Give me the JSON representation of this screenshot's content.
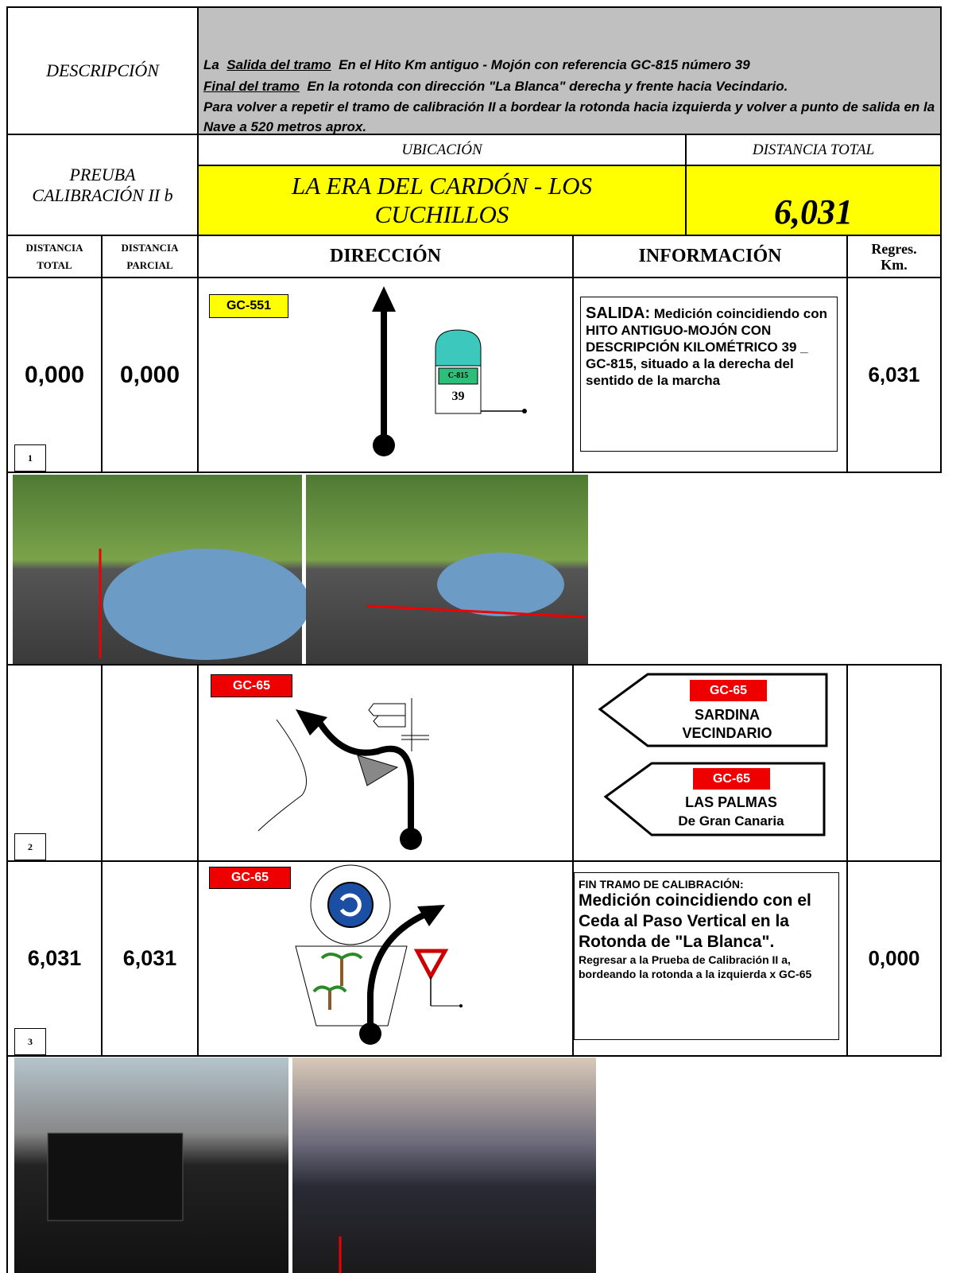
{
  "description": {
    "label": "DESCRIPCIÓN",
    "start_prefix": "La",
    "start_label": "Salida del tramo",
    "start_text": "En el Hito Km antiguo - Mojón con referencia GC-815 número 39",
    "end_label": "Final del tramo",
    "end_text": "En la rotonda con dirección \"La Blanca\" derecha y frente hacia Vecindario.",
    "note": "Para volver a repetir el tramo de calibración II a bordear la rotonda hacia izquierda y volver a punto de salida en la Nave a 520 metros aprox."
  },
  "header": {
    "test": "PREUBA CALIBRACIÓN II b",
    "location_label": "UBICACIÓN",
    "location": "LA ERA DEL CARDÓN - LOS CUCHILLOS",
    "total_label": "DISTANCIA TOTAL",
    "total": "6,031"
  },
  "columns": [
    "DISTANCIA TOTAL",
    "DISTANCIA PARCIAL",
    "DIRECCIÓN",
    "INFORMACIÓN",
    "Regres. Km."
  ],
  "rows": [
    {
      "number": "1",
      "total": "0,000",
      "partial": "0,000",
      "road": "GC-551",
      "milestone_road": "C-815",
      "milestone_km": "39",
      "info_title": "SALIDA:",
      "info": "Medición coincidiendo con HITO ANTIGUO-MOJÓN CON DESCRIPCIÓN KILOMÉTRICO 39 _ GC-815, situado a la derecha del sentido de la marcha",
      "regres": "6,031"
    },
    {
      "number": "2",
      "road": "GC-65",
      "signs": [
        {
          "road": "GC-65",
          "line1": "SARDINA",
          "line2": "VECINDARIO"
        },
        {
          "road": "GC-65",
          "line1": "LAS PALMAS",
          "line2": "De Gran Canaria"
        }
      ]
    },
    {
      "number": "3",
      "total": "6,031",
      "partial": "6,031",
      "road": "GC-65",
      "info_title": "FIN TRAMO DE CALIBRACIÓN:",
      "info": "Medición coincidiendo con el Ceda al Paso Vertical en la Rotonda de \"La Blanca\".",
      "info_note": "Regresar a la Prueba de Calibración II a, bordeando la rotonda a la izquierda x GC-65",
      "regres": "0,000"
    }
  ]
}
